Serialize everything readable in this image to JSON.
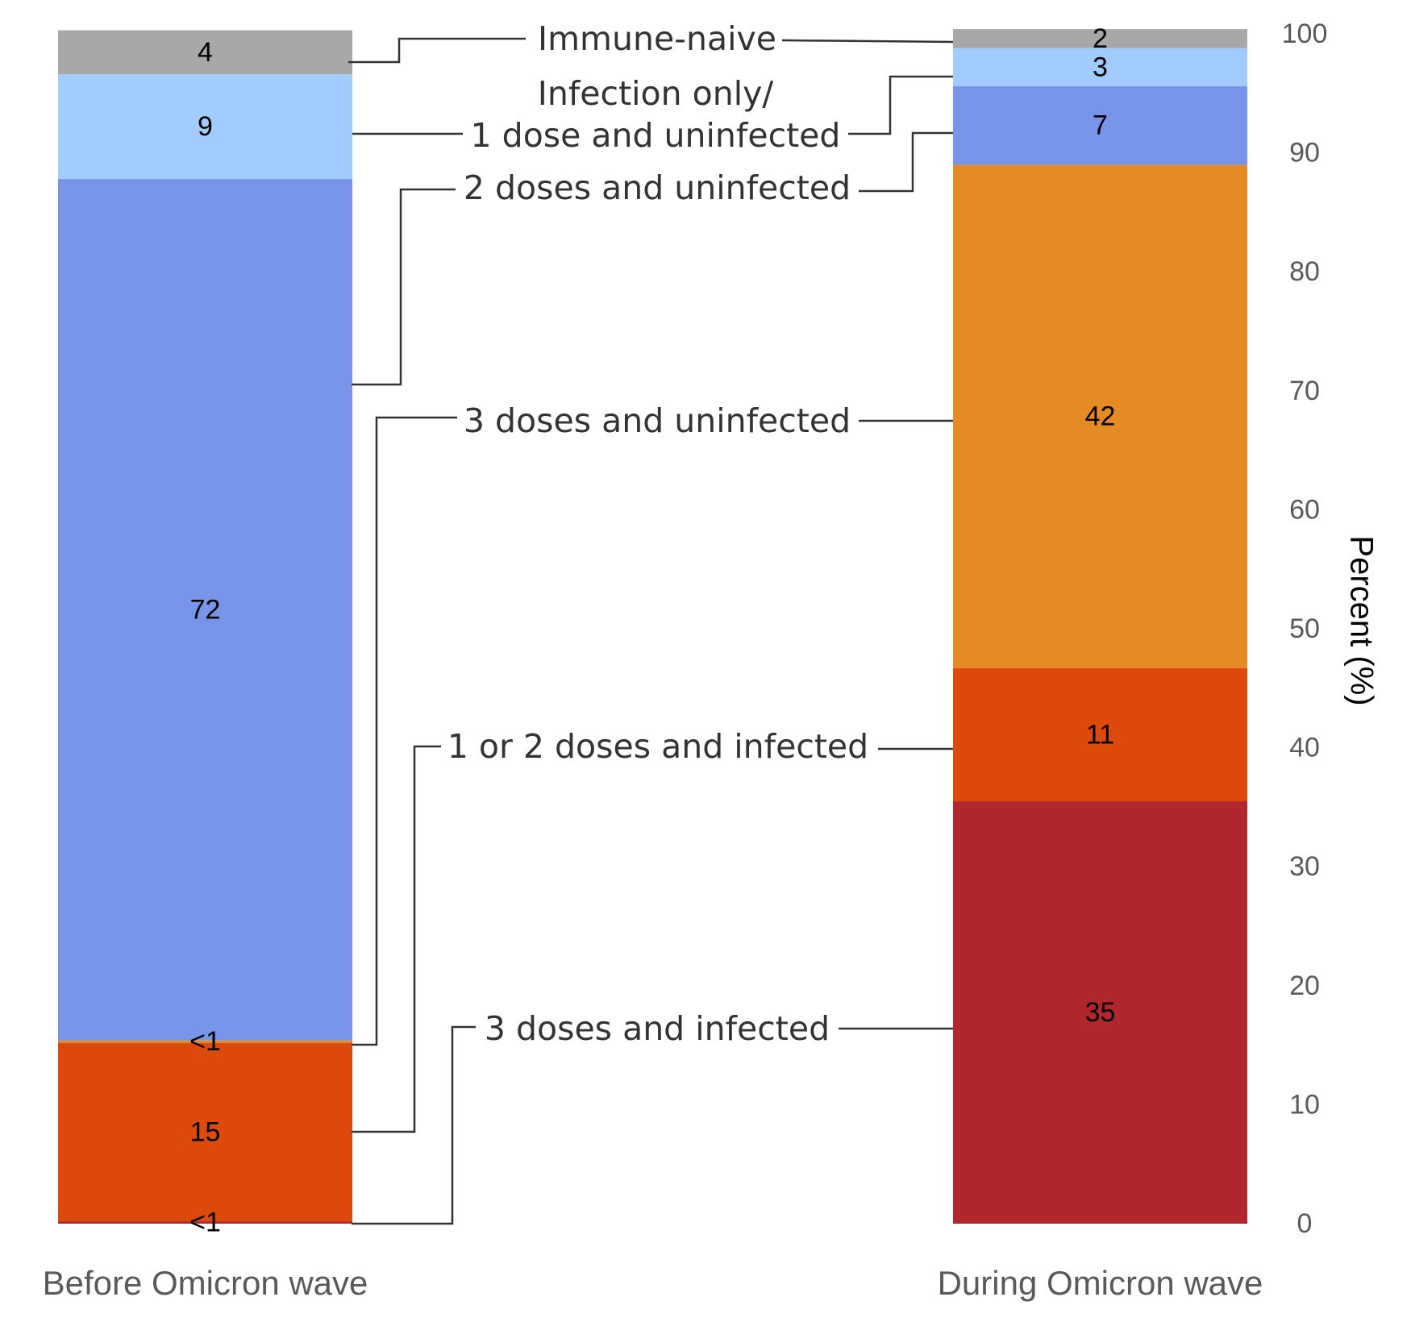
{
  "chart_data": {
    "type": "bar",
    "stacked": true,
    "categories": [
      "Before Omicron wave",
      "During Omicron wave"
    ],
    "ylabel": "Percent (%)",
    "ylim": [
      0,
      100
    ],
    "yticks": [
      "0",
      "10",
      "20",
      "30",
      "40",
      "50",
      "60",
      "70",
      "80",
      "90",
      "100"
    ],
    "grid": false,
    "series": [
      {
        "name": "3 doses and infected",
        "color": "#b0282e",
        "values": [
          0.2,
          35.5
        ],
        "labels": [
          "<1",
          "35"
        ]
      },
      {
        "name": "1 or 2 doses and infected",
        "color": "#dc4a0c",
        "values": [
          15,
          11.2
        ],
        "labels": [
          "15",
          "11"
        ]
      },
      {
        "name": "3 doses and uninfected",
        "color": "#e48b25",
        "values": [
          0.2,
          42.3
        ],
        "labels": [
          "<1",
          "42"
        ]
      },
      {
        "name": "2 doses and uninfected",
        "color": "#7794e8",
        "values": [
          72.4,
          6.6
        ],
        "labels": [
          "72",
          "7"
        ]
      },
      {
        "name": "Infection only/ 1 dose and uninfected",
        "color": "#a2ccff",
        "values": [
          8.8,
          3.2
        ],
        "labels": [
          "9",
          "3"
        ]
      },
      {
        "name": "Immune-naive",
        "color": "#a8a8a8",
        "values": [
          3.7,
          1.6
        ],
        "labels": [
          "4",
          "2"
        ]
      }
    ]
  },
  "annotations": {
    "immune_naive": "Immune-naive",
    "infection_only_line1": "Infection only/",
    "infection_only_line2": "1 dose and uninfected",
    "two_doses_uninfected": "2 doses and uninfected",
    "three_doses_uninfected": "3 doses and uninfected",
    "one_or_two_doses_infected": "1 or 2 doses and infected",
    "three_doses_infected": "3 doses and infected"
  }
}
